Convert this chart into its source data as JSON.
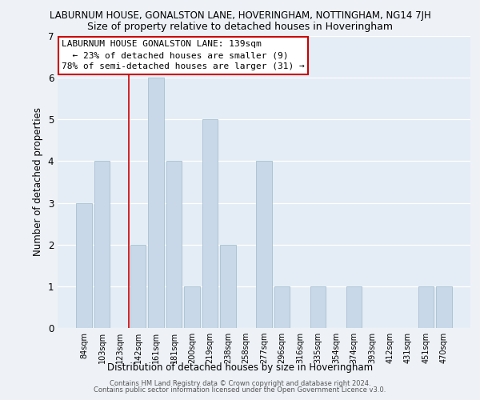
{
  "title_top": "LABURNUM HOUSE, GONALSTON LANE, HOVERINGHAM, NOTTINGHAM, NG14 7JH",
  "title_sub": "Size of property relative to detached houses in Hoveringham",
  "xlabel": "Distribution of detached houses by size in Hoveringham",
  "ylabel": "Number of detached properties",
  "bar_labels": [
    "84sqm",
    "103sqm",
    "123sqm",
    "142sqm",
    "161sqm",
    "181sqm",
    "200sqm",
    "219sqm",
    "238sqm",
    "258sqm",
    "277sqm",
    "296sqm",
    "316sqm",
    "335sqm",
    "354sqm",
    "374sqm",
    "393sqm",
    "412sqm",
    "431sqm",
    "451sqm",
    "470sqm"
  ],
  "bar_values": [
    3,
    4,
    0,
    2,
    6,
    4,
    1,
    5,
    2,
    0,
    4,
    1,
    0,
    1,
    0,
    1,
    0,
    0,
    0,
    1,
    1
  ],
  "bar_color": "#c8d8e8",
  "bar_edge_color": "#a8c0d0",
  "vline_x": 2.5,
  "vline_color": "#cc0000",
  "annotation_lines": [
    "LABURNUM HOUSE GONALSTON LANE: 139sqm",
    "  ← 23% of detached houses are smaller (9)",
    "78% of semi-detached houses are larger (31) →"
  ],
  "ylim": [
    0,
    7
  ],
  "yticks": [
    0,
    1,
    2,
    3,
    4,
    5,
    6,
    7
  ],
  "footer1": "Contains HM Land Registry data © Crown copyright and database right 2024.",
  "footer2": "Contains public sector information licensed under the Open Government Licence v3.0.",
  "bg_color": "#eef2f7",
  "plot_bg_color": "#e4edf5",
  "grid_color": "#ffffff",
  "ann_box_color": "#ffffff",
  "ann_border_color": "#cc0000"
}
